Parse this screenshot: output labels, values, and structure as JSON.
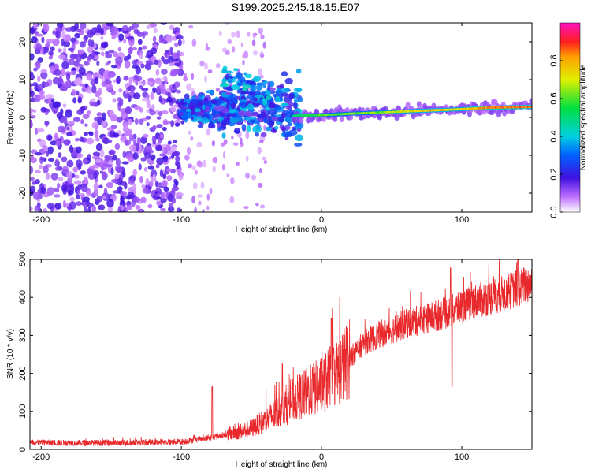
{
  "title": "S199.2025.245.18.15.E07",
  "spectrogram": {
    "xlabel": "Height of straight line (km)",
    "ylabel": "Frequency (Hz)",
    "xlim": [
      -208,
      150
    ],
    "ylim": [
      -25,
      25
    ],
    "xticks": [
      -200,
      -100,
      0,
      100
    ],
    "yticks": [
      -20,
      -10,
      0,
      10,
      20
    ],
    "colorbar": {
      "label": "Normalized spectral amplitude",
      "range": [
        0,
        1
      ],
      "ticks": [
        "0.0",
        "0.2",
        "0.4",
        "0.6",
        "0.8"
      ]
    }
  },
  "chart_data": [
    {
      "type": "heatmap",
      "title": "S199.2025.245.18.15.E07",
      "xlabel": "Height of straight line (km)",
      "ylabel": "Frequency (Hz)",
      "xlim": [
        -208,
        150
      ],
      "ylim": [
        -25,
        25
      ],
      "description_of_values": "Scattered noise (-208 to -100 km); broadband burst -100 to -20 km around 0-12 Hz; narrow coherent line near 1-3 Hz from -20 km to 150 km with highest amplitude (~0.95) near 120-150 km",
      "ridge": {
        "x": [
          -20,
          0,
          20,
          40,
          60,
          80,
          100,
          120,
          150
        ],
        "freq_hz": [
          0.5,
          0.6,
          1.0,
          1.3,
          1.6,
          1.9,
          2.2,
          2.6,
          2.8
        ],
        "amplitude": [
          0.55,
          0.65,
          0.7,
          0.7,
          0.8,
          0.85,
          0.8,
          0.95,
          0.95
        ]
      }
    },
    {
      "type": "line",
      "title": "",
      "xlabel": "Height of straight line (km)",
      "ylabel": "SNR (10 * v/v)",
      "xlim": [
        -208,
        150
      ],
      "ylim": [
        0,
        500
      ],
      "xticks": [
        -200,
        -100,
        0,
        100
      ],
      "yticks": [
        0,
        100,
        200,
        300,
        400,
        500
      ],
      "series": [
        {
          "name": "SNR",
          "color": "#e8282a",
          "x": [
            -208,
            -180,
            -150,
            -120,
            -100,
            -90,
            -80,
            -70,
            -60,
            -50,
            -40,
            -30,
            -20,
            -10,
            0,
            10,
            20,
            30,
            40,
            50,
            60,
            70,
            80,
            90,
            100,
            110,
            120,
            130,
            140,
            150
          ],
          "y": [
            18,
            17,
            17,
            18,
            20,
            25,
            30,
            38,
            45,
            55,
            75,
            100,
            130,
            150,
            170,
            200,
            240,
            280,
            300,
            315,
            330,
            340,
            350,
            360,
            375,
            390,
            400,
            410,
            425,
            440
          ]
        }
      ],
      "spikes": [
        {
          "x": -78,
          "y": 165
        },
        {
          "x": -28,
          "y": 225
        },
        {
          "x": 7,
          "y": 345
        },
        {
          "x": 92,
          "y": 478
        },
        {
          "x": 93,
          "y": 165
        },
        {
          "x": 140,
          "y": 500
        }
      ]
    }
  ]
}
